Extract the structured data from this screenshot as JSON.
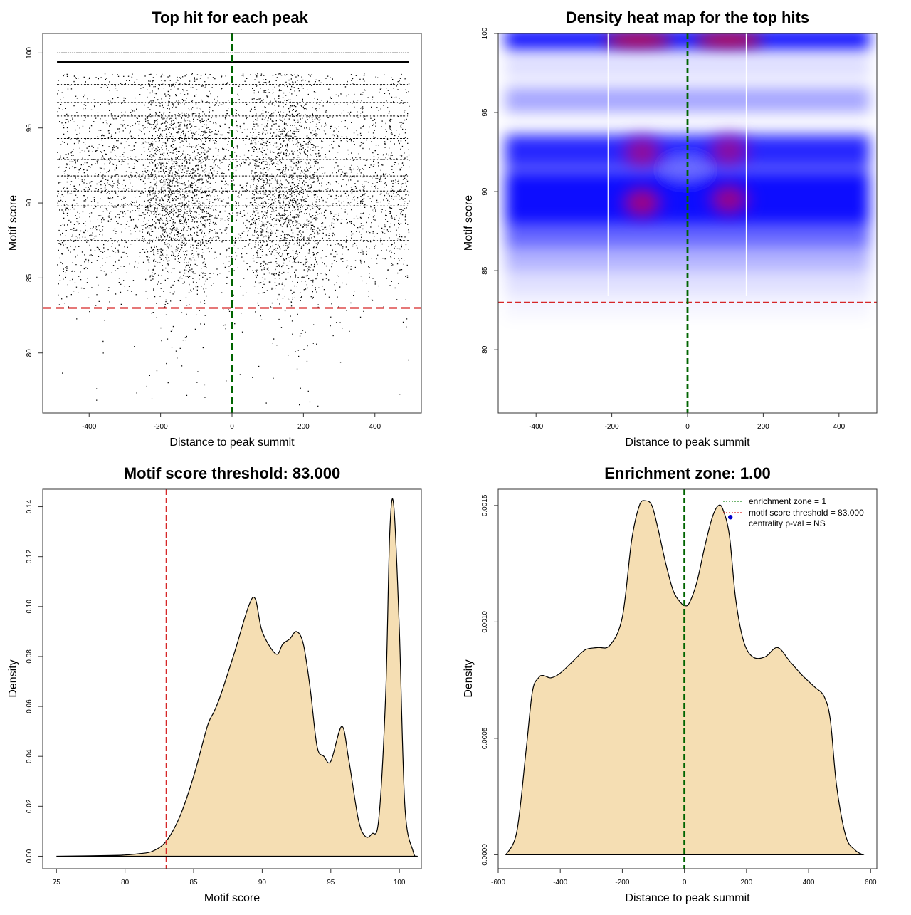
{
  "colors": {
    "threshold": "#d62728",
    "zone": "#006400",
    "fill": "#f5deb3",
    "heat_low": "#0000ff",
    "heat_high": "#ff0000",
    "pval_dot": "#0000cc"
  },
  "chart_data": [
    {
      "id": "p1",
      "type": "scatter",
      "title": "Top hit for each peak",
      "xlabel": "Distance to peak summit",
      "ylabel": "Motif score",
      "xlim": [
        -530,
        530
      ],
      "ylim": [
        76,
        101.3
      ],
      "xticks": [
        -400,
        -200,
        0,
        200,
        400
      ],
      "yticks": [
        80,
        85,
        90,
        95,
        100
      ],
      "threshold": 83.0,
      "zone_x": 0,
      "point_density": [
        {
          "score": 100.0,
          "rel": 0.75
        },
        {
          "score": 99.4,
          "rel": 1.0
        },
        {
          "score": 98.3,
          "rel": 0.35
        },
        {
          "score": 97.9,
          "rel": 0.3
        },
        {
          "score": 97.1,
          "rel": 0.25
        },
        {
          "score": 96.7,
          "rel": 0.45
        },
        {
          "score": 96.2,
          "rel": 0.3
        },
        {
          "score": 95.8,
          "rel": 0.6
        },
        {
          "score": 94.0,
          "rel": 0.55
        },
        {
          "score": 92.0,
          "rel": 0.75
        },
        {
          "score": 90.0,
          "rel": 0.85
        },
        {
          "score": 88.5,
          "rel": 0.75
        },
        {
          "score": 87.0,
          "rel": 0.55
        },
        {
          "score": 85.5,
          "rel": 0.35
        },
        {
          "score": 84.0,
          "rel": 0.15
        },
        {
          "score": 82.5,
          "rel": 0.05
        },
        {
          "score": 80.0,
          "rel": 0.02
        },
        {
          "score": 78.0,
          "rel": 0.01
        }
      ]
    },
    {
      "id": "p2",
      "type": "heatmap",
      "title": "Density heat map for the top hits",
      "xlabel": "Distance to peak summit",
      "ylabel": "Motif score",
      "xlim": [
        -500,
        500
      ],
      "ylim": [
        76,
        100
      ],
      "xticks": [
        -400,
        -200,
        0,
        200,
        400
      ],
      "yticks": [
        80,
        85,
        90,
        95,
        100
      ],
      "threshold": 83.0,
      "zone_x": 0,
      "white_lines_x": [
        -210,
        155
      ],
      "hotspots": [
        {
          "x": -130,
          "y": 99.6,
          "w": 1.0
        },
        {
          "x": 110,
          "y": 99.6,
          "w": 1.0
        },
        {
          "x": -120,
          "y": 89.3,
          "w": 0.7
        },
        {
          "x": 110,
          "y": 89.5,
          "w": 0.65
        },
        {
          "x": -120,
          "y": 92.5,
          "w": 0.55
        },
        {
          "x": 110,
          "y": 92.6,
          "w": 0.5
        }
      ]
    },
    {
      "id": "p3",
      "type": "area",
      "title": "Motif score threshold: 83.000",
      "xlabel": "Motif score",
      "ylabel": "Density",
      "xlim": [
        74.0,
        101.6
      ],
      "ylim": [
        -0.005,
        0.147
      ],
      "xticks": [
        75,
        80,
        85,
        90,
        95,
        100
      ],
      "yticks": [
        0.0,
        0.02,
        0.04,
        0.06,
        0.08,
        0.1,
        0.12,
        0.14
      ],
      "ytick_labels": [
        "0.00",
        "0.02",
        "0.04",
        "0.06",
        "0.08",
        "0.10",
        "0.12",
        "0.14"
      ],
      "threshold": 83.0,
      "x": [
        75,
        79,
        80,
        81,
        82,
        83,
        84,
        85,
        86,
        86.5,
        87,
        88,
        89,
        89.5,
        90,
        91,
        91.5,
        92,
        92.5,
        93,
        93.5,
        94,
        94.5,
        95,
        95.8,
        96.3,
        97,
        97.5,
        98,
        98.5,
        99,
        99.3,
        99.6,
        100,
        100.4,
        101,
        101.3
      ],
      "y": [
        0.0,
        0.0003,
        0.0005,
        0.001,
        0.002,
        0.006,
        0.016,
        0.032,
        0.052,
        0.058,
        0.065,
        0.082,
        0.1,
        0.103,
        0.09,
        0.081,
        0.085,
        0.087,
        0.09,
        0.085,
        0.067,
        0.044,
        0.04,
        0.038,
        0.052,
        0.039,
        0.015,
        0.008,
        0.009,
        0.015,
        0.065,
        0.13,
        0.14,
        0.09,
        0.02,
        0.002,
        0.0
      ]
    },
    {
      "id": "p4",
      "type": "area",
      "title": "Enrichment zone: 1.00",
      "xlabel": "Distance to peak summit",
      "ylabel": "Density",
      "xlim": [
        -600,
        620
      ],
      "ylim": [
        -6e-05,
        0.00157
      ],
      "xticks": [
        -600,
        -400,
        -200,
        0,
        200,
        400,
        600
      ],
      "yticks": [
        0.0,
        0.0005,
        0.001,
        0.0015
      ],
      "ytick_labels": [
        "0.0000",
        "0.0005",
        "0.0010",
        "0.0015"
      ],
      "zone_x": 0,
      "x": [
        -575,
        -540,
        -510,
        -490,
        -470,
        -455,
        -430,
        -400,
        -360,
        -320,
        -280,
        -240,
        -200,
        -170,
        -145,
        -125,
        -105,
        -85,
        -60,
        -35,
        -10,
        0,
        15,
        40,
        65,
        90,
        110,
        125,
        145,
        165,
        190,
        220,
        260,
        300,
        340,
        380,
        420,
        450,
        470,
        490,
        520,
        550,
        575
      ],
      "y": [
        0.0,
        0.0001,
        0.00045,
        0.0007,
        0.00076,
        0.00077,
        0.00076,
        0.00078,
        0.00083,
        0.00088,
        0.00089,
        0.0009,
        0.00102,
        0.00135,
        0.0015,
        0.00152,
        0.0015,
        0.0014,
        0.00125,
        0.00113,
        0.00108,
        0.00107,
        0.00108,
        0.00117,
        0.00132,
        0.00145,
        0.0015,
        0.00148,
        0.00137,
        0.0011,
        0.00092,
        0.00085,
        0.00085,
        0.00089,
        0.00083,
        0.00077,
        0.00072,
        0.00068,
        0.00058,
        0.0003,
        8e-05,
        2e-05,
        0.0
      ],
      "legend": {
        "position": "top-right",
        "items": [
          {
            "label": "enrichment zone = 1",
            "style": "dotted-line",
            "color": "#228b22"
          },
          {
            "label": "motif score threshold = 83.000",
            "style": "dotted-line",
            "color": "#d62728"
          },
          {
            "label": "centrality p-val = NS",
            "style": "dot",
            "color": "#0000cc"
          }
        ]
      },
      "pval_dot": {
        "x": 148,
        "y": 0.00145
      }
    }
  ]
}
